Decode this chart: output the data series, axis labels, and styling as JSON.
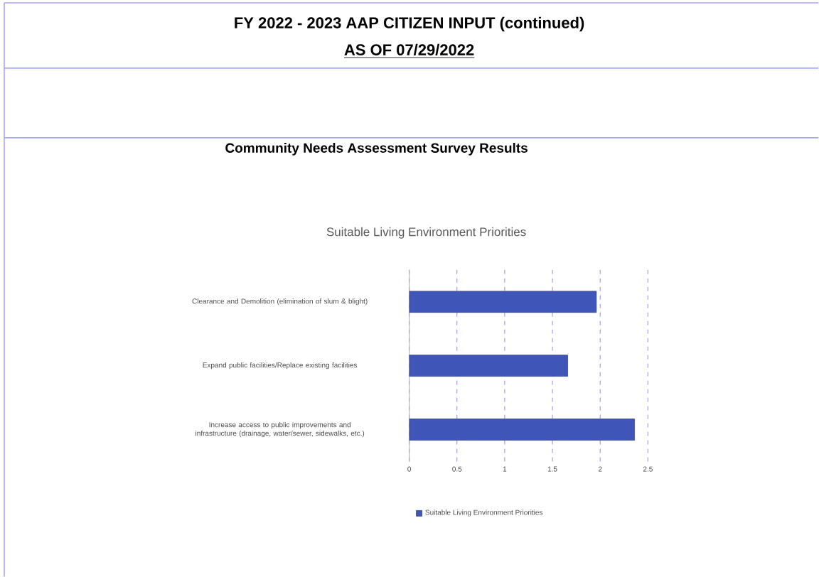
{
  "chart_data": {
    "type": "bar",
    "orientation": "horizontal",
    "title": "Suitable Living Environment Priorities",
    "annotations": [
      "FY 2022 - 2023 AAP CITIZEN INPUT (continued)",
      "AS OF 07/29/2022",
      "Community Needs Assessment Survey Results"
    ],
    "categories": [
      "Clearance and Demolition (elimination of slum & blight)",
      "Expand public facilities/Replace existing facilities",
      "Increase access to public improvements and infrastructure (drainage, water/sewer, sidewalks, etc.)"
    ],
    "series": [
      {
        "name": "Suitable Living Environment Priorities",
        "color": "#3f56b8",
        "values": [
          1.96,
          1.66,
          2.36
        ]
      }
    ],
    "xlim": [
      0,
      2.5
    ],
    "xticks": [
      0,
      0.5,
      1,
      1.5,
      2,
      2.5
    ],
    "grid": "x",
    "legend": "bottom"
  }
}
